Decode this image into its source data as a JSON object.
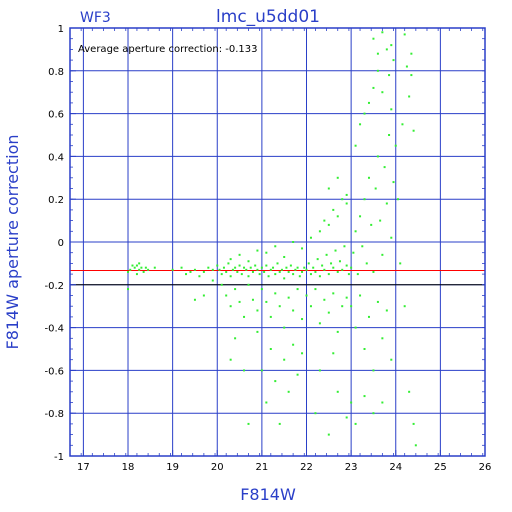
{
  "chart_data": {
    "type": "scatter",
    "title": "lmc_u5dd01",
    "camera_label": "WF3",
    "xlabel": "F814W",
    "ylabel": "F814W aperture correction",
    "annotation": "Average aperture correction: -0.133",
    "xlim": [
      16.7,
      26
    ],
    "ylim": [
      -1,
      1
    ],
    "x_ticks": [
      17,
      18,
      19,
      20,
      21,
      22,
      23,
      24,
      25,
      26
    ],
    "y_ticks": [
      -1,
      -0.8,
      -0.6,
      -0.4,
      -0.2,
      0,
      0.2,
      0.4,
      0.6,
      0.8,
      1
    ],
    "grid": true,
    "reference_lines": [
      {
        "y": -0.133,
        "color": "#ff0000"
      },
      {
        "y": -0.2,
        "color": "#000000"
      }
    ],
    "colors": {
      "axis": "#2a3fc8",
      "points": "#33ee33",
      "grid": "#2a3fc8"
    },
    "series": [
      {
        "marker_color": "#33ee33",
        "points": [
          [
            18.0,
            -0.14
          ],
          [
            18.05,
            -0.13
          ],
          [
            18.1,
            -0.11
          ],
          [
            18.15,
            -0.12
          ],
          [
            18.2,
            -0.15
          ],
          [
            18.2,
            -0.11
          ],
          [
            18.25,
            -0.1
          ],
          [
            18.25,
            -0.13
          ],
          [
            18.3,
            -0.12
          ],
          [
            18.35,
            -0.14
          ],
          [
            18.4,
            -0.12
          ],
          [
            18.45,
            -0.13
          ],
          [
            18.0,
            -0.22
          ],
          [
            18.6,
            -0.12
          ],
          [
            19.0,
            -0.13
          ],
          [
            19.2,
            -0.12
          ],
          [
            19.3,
            -0.15
          ],
          [
            19.4,
            -0.14
          ],
          [
            19.5,
            -0.13
          ],
          [
            19.6,
            -0.16
          ],
          [
            19.7,
            -0.14
          ],
          [
            19.8,
            -0.12
          ],
          [
            19.9,
            -0.13
          ],
          [
            19.5,
            -0.27
          ],
          [
            19.7,
            -0.25
          ],
          [
            19.9,
            -0.18
          ],
          [
            20.0,
            -0.11
          ],
          [
            20.05,
            -0.13
          ],
          [
            20.1,
            -0.15
          ],
          [
            20.15,
            -0.12
          ],
          [
            20.2,
            -0.14
          ],
          [
            20.25,
            -0.1
          ],
          [
            20.3,
            -0.16
          ],
          [
            20.35,
            -0.13
          ],
          [
            20.4,
            -0.12
          ],
          [
            20.45,
            -0.14
          ],
          [
            20.5,
            -0.11
          ],
          [
            20.55,
            -0.15
          ],
          [
            20.6,
            -0.12
          ],
          [
            20.65,
            -0.13
          ],
          [
            20.7,
            -0.16
          ],
          [
            20.75,
            -0.12
          ],
          [
            20.8,
            -0.14
          ],
          [
            20.85,
            -0.11
          ],
          [
            20.9,
            -0.13
          ],
          [
            20.95,
            -0.15
          ],
          [
            20.1,
            -0.2
          ],
          [
            20.2,
            -0.25
          ],
          [
            20.3,
            -0.3
          ],
          [
            20.4,
            -0.22
          ],
          [
            20.5,
            -0.28
          ],
          [
            20.6,
            -0.35
          ],
          [
            20.7,
            -0.2
          ],
          [
            20.8,
            -0.27
          ],
          [
            20.9,
            -0.32
          ],
          [
            20.3,
            -0.08
          ],
          [
            20.5,
            -0.06
          ],
          [
            20.7,
            -0.09
          ],
          [
            20.9,
            -0.04
          ],
          [
            20.3,
            -0.55
          ],
          [
            20.4,
            -0.45
          ],
          [
            20.6,
            -0.6
          ],
          [
            20.7,
            -0.85
          ],
          [
            20.9,
            -0.42
          ],
          [
            21.0,
            -0.12
          ],
          [
            21.05,
            -0.14
          ],
          [
            21.1,
            -0.11
          ],
          [
            21.15,
            -0.16
          ],
          [
            21.2,
            -0.13
          ],
          [
            21.25,
            -0.12
          ],
          [
            21.3,
            -0.15
          ],
          [
            21.35,
            -0.1
          ],
          [
            21.4,
            -0.14
          ],
          [
            21.45,
            -0.13
          ],
          [
            21.5,
            -0.17
          ],
          [
            21.55,
            -0.12
          ],
          [
            21.6,
            -0.14
          ],
          [
            21.65,
            -0.11
          ],
          [
            21.7,
            -0.15
          ],
          [
            21.75,
            -0.13
          ],
          [
            21.8,
            -0.12
          ],
          [
            21.85,
            -0.16
          ],
          [
            21.9,
            -0.14
          ],
          [
            21.95,
            -0.12
          ],
          [
            21.0,
            -0.22
          ],
          [
            21.1,
            -0.28
          ],
          [
            21.2,
            -0.35
          ],
          [
            21.3,
            -0.24
          ],
          [
            21.4,
            -0.3
          ],
          [
            21.5,
            -0.4
          ],
          [
            21.6,
            -0.26
          ],
          [
            21.7,
            -0.32
          ],
          [
            21.8,
            -0.22
          ],
          [
            21.9,
            -0.36
          ],
          [
            21.1,
            -0.05
          ],
          [
            21.3,
            -0.02
          ],
          [
            21.5,
            -0.07
          ],
          [
            21.7,
            0.0
          ],
          [
            21.9,
            -0.03
          ],
          [
            21.0,
            -0.6
          ],
          [
            21.1,
            -0.75
          ],
          [
            21.2,
            -0.5
          ],
          [
            21.3,
            -0.65
          ],
          [
            21.4,
            -0.85
          ],
          [
            21.5,
            -0.55
          ],
          [
            21.6,
            -0.7
          ],
          [
            21.7,
            -0.48
          ],
          [
            21.8,
            -0.62
          ],
          [
            21.9,
            -0.52
          ],
          [
            22.0,
            -0.13
          ],
          [
            22.05,
            -0.1
          ],
          [
            22.1,
            -0.15
          ],
          [
            22.15,
            -0.12
          ],
          [
            22.2,
            -0.14
          ],
          [
            22.25,
            -0.08
          ],
          [
            22.3,
            -0.16
          ],
          [
            22.35,
            -0.11
          ],
          [
            22.4,
            -0.13
          ],
          [
            22.45,
            -0.06
          ],
          [
            22.5,
            -0.15
          ],
          [
            22.55,
            -0.1
          ],
          [
            22.6,
            -0.12
          ],
          [
            22.65,
            -0.04
          ],
          [
            22.7,
            -0.14
          ],
          [
            22.75,
            -0.09
          ],
          [
            22.8,
            -0.13
          ],
          [
            22.85,
            -0.02
          ],
          [
            22.9,
            -0.11
          ],
          [
            22.95,
            -0.15
          ],
          [
            22.0,
            -0.25
          ],
          [
            22.1,
            -0.3
          ],
          [
            22.2,
            -0.22
          ],
          [
            22.3,
            -0.38
          ],
          [
            22.4,
            -0.27
          ],
          [
            22.5,
            -0.33
          ],
          [
            22.6,
            -0.24
          ],
          [
            22.7,
            -0.42
          ],
          [
            22.8,
            -0.3
          ],
          [
            22.9,
            -0.26
          ],
          [
            22.1,
            0.02
          ],
          [
            22.3,
            0.05
          ],
          [
            22.4,
            0.1
          ],
          [
            22.5,
            0.08
          ],
          [
            22.6,
            0.15
          ],
          [
            22.7,
            0.12
          ],
          [
            22.8,
            0.2
          ],
          [
            22.9,
            0.18
          ],
          [
            22.5,
            0.25
          ],
          [
            22.7,
            0.3
          ],
          [
            22.9,
            0.22
          ],
          [
            22.2,
            -0.8
          ],
          [
            22.3,
            -0.6
          ],
          [
            22.5,
            -0.9
          ],
          [
            22.7,
            -0.7
          ],
          [
            22.9,
            -0.82
          ],
          [
            22.6,
            -0.52
          ],
          [
            23.0,
            -0.12
          ],
          [
            23.05,
            -0.05
          ],
          [
            23.1,
            0.05
          ],
          [
            23.15,
            -0.15
          ],
          [
            23.2,
            0.12
          ],
          [
            23.25,
            -0.02
          ],
          [
            23.3,
            0.2
          ],
          [
            23.35,
            -0.1
          ],
          [
            23.4,
            0.3
          ],
          [
            23.45,
            0.08
          ],
          [
            23.5,
            -0.14
          ],
          [
            23.55,
            0.25
          ],
          [
            23.6,
            0.4
          ],
          [
            23.65,
            0.1
          ],
          [
            23.7,
            -0.06
          ],
          [
            23.75,
            0.35
          ],
          [
            23.8,
            0.18
          ],
          [
            23.85,
            0.5
          ],
          [
            23.9,
            0.02
          ],
          [
            23.95,
            0.28
          ],
          [
            23.0,
            -0.3
          ],
          [
            23.1,
            -0.4
          ],
          [
            23.2,
            -0.25
          ],
          [
            23.3,
            -0.5
          ],
          [
            23.4,
            -0.35
          ],
          [
            23.5,
            -0.6
          ],
          [
            23.6,
            -0.28
          ],
          [
            23.7,
            -0.45
          ],
          [
            23.8,
            -0.32
          ],
          [
            23.9,
            -0.55
          ],
          [
            23.0,
            -0.75
          ],
          [
            23.1,
            -0.85
          ],
          [
            23.3,
            -0.72
          ],
          [
            23.5,
            -0.8
          ],
          [
            23.7,
            -0.75
          ],
          [
            23.1,
            0.45
          ],
          [
            23.2,
            0.55
          ],
          [
            23.3,
            0.6
          ],
          [
            23.4,
            0.65
          ],
          [
            23.5,
            0.72
          ],
          [
            23.6,
            0.8
          ],
          [
            23.7,
            0.7
          ],
          [
            23.8,
            0.9
          ],
          [
            23.85,
            0.78
          ],
          [
            23.9,
            0.62
          ],
          [
            23.5,
            0.95
          ],
          [
            23.6,
            0.88
          ],
          [
            23.9,
            0.92
          ],
          [
            23.95,
            0.85
          ],
          [
            23.7,
            0.98
          ],
          [
            24.0,
            0.45
          ],
          [
            24.05,
            0.2
          ],
          [
            24.1,
            -0.1
          ],
          [
            24.15,
            0.55
          ],
          [
            24.2,
            -0.3
          ],
          [
            24.25,
            0.82
          ],
          [
            24.3,
            0.68
          ],
          [
            24.35,
            0.78
          ],
          [
            24.4,
            0.52
          ],
          [
            24.4,
            -0.85
          ],
          [
            24.45,
            -0.95
          ],
          [
            24.3,
            -0.7
          ],
          [
            24.2,
            0.97
          ],
          [
            24.35,
            0.88
          ]
        ]
      }
    ]
  }
}
